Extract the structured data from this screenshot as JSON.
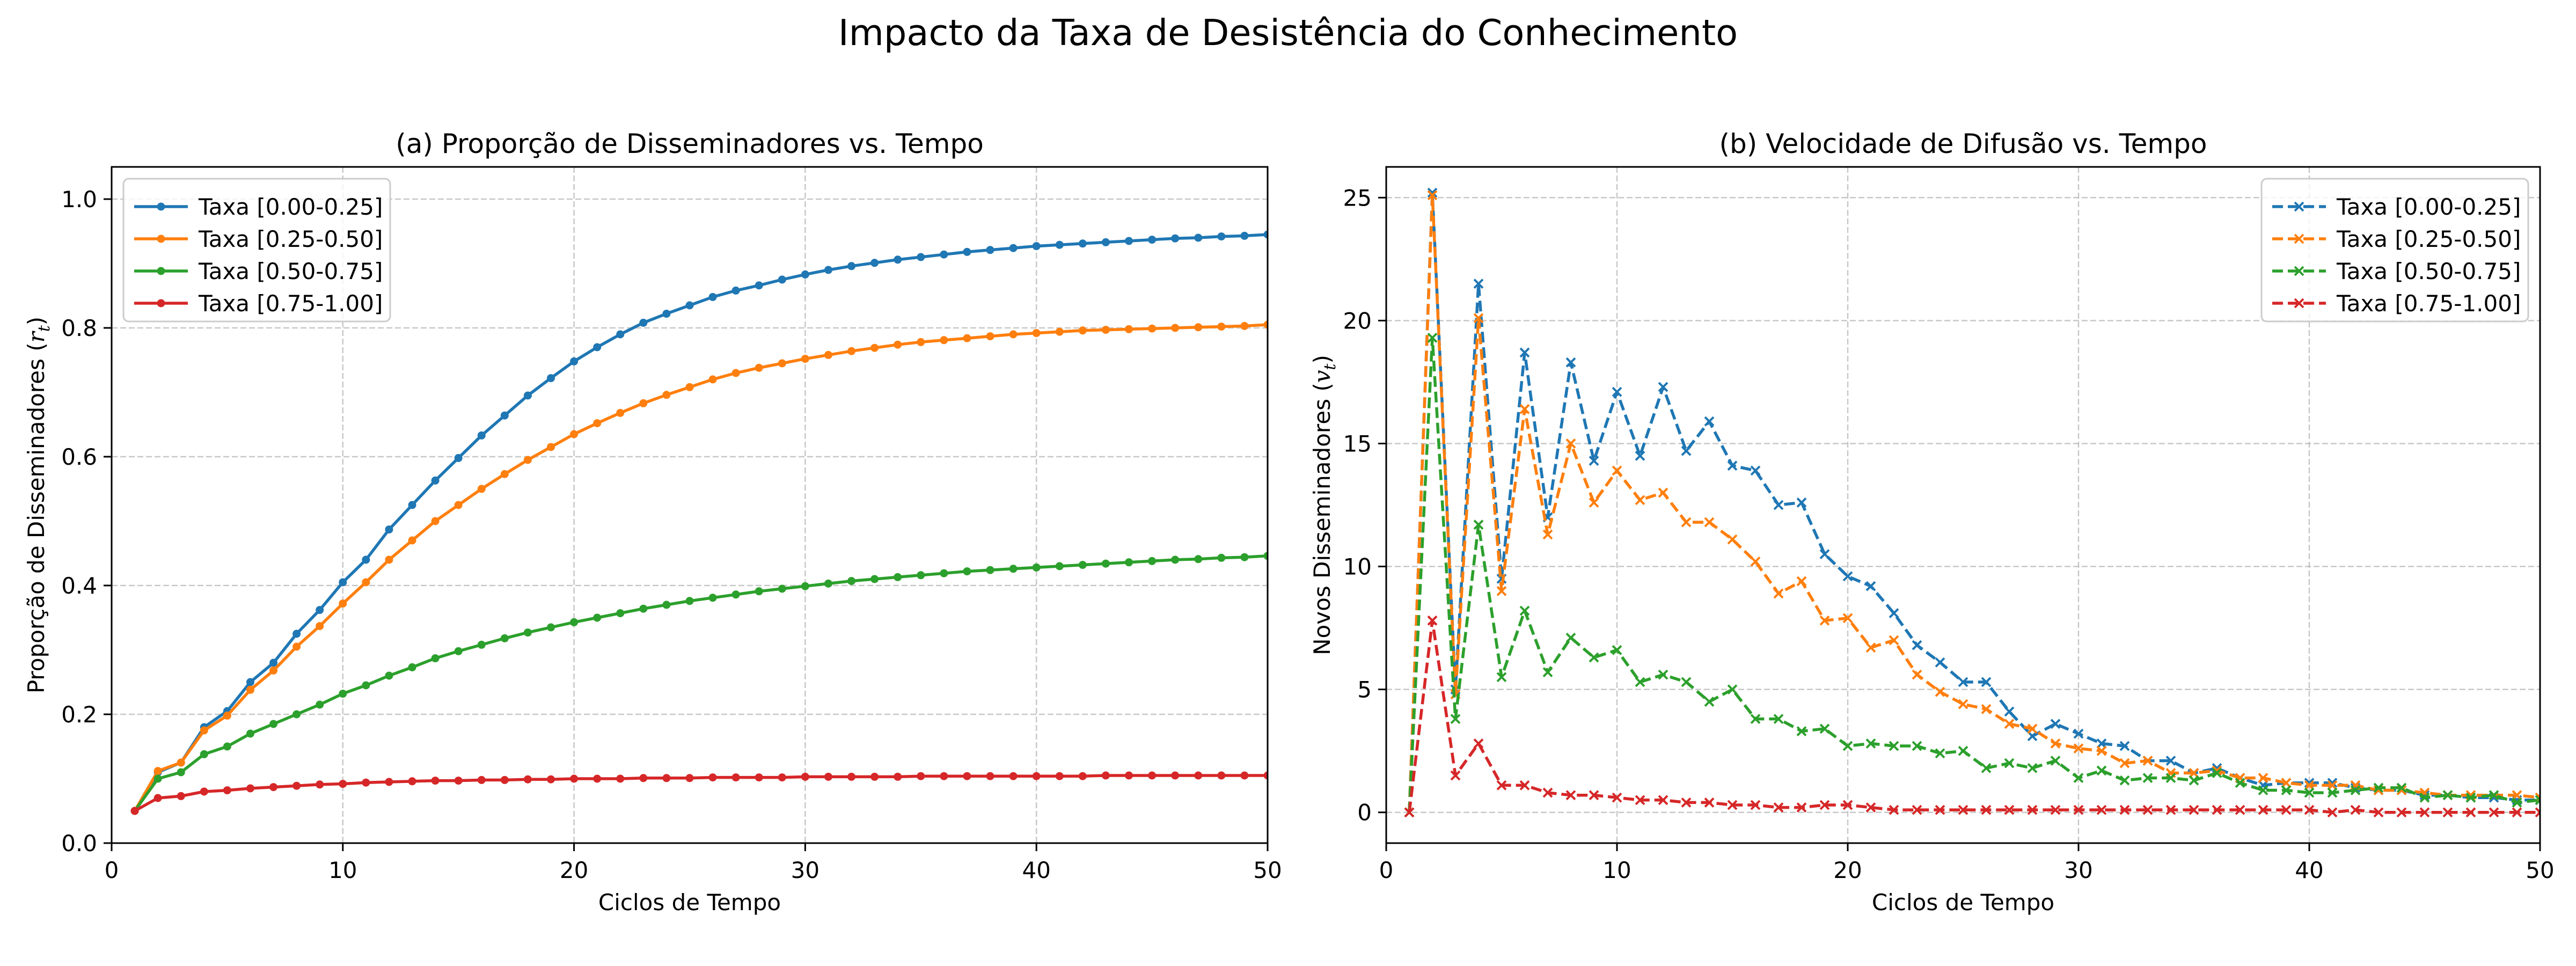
{
  "suptitle": "Impacto da Taxa de Desistência do Conhecimento",
  "colors": {
    "series": [
      "#1f77b4",
      "#ff7f0e",
      "#2ca02c",
      "#d62728"
    ],
    "grid": "#b0b0b0",
    "axes": "#000000"
  },
  "chart_data": [
    {
      "type": "line",
      "title": "(a) Proporção de Disseminadores vs. Tempo",
      "xlabel": "Ciclos de Tempo",
      "ylabel_main": "Proporção de Disseminadores (",
      "ylabel_sym": "r",
      "ylabel_sub": "t",
      "ylabel_end": ")",
      "xlim": [
        0,
        50
      ],
      "ylim": [
        0,
        1.05
      ],
      "xticks": [
        0,
        10,
        20,
        30,
        40,
        50
      ],
      "xtick_labels": [
        "0",
        "10",
        "20",
        "30",
        "40",
        "50"
      ],
      "yticks": [
        0,
        0.2,
        0.4,
        0.6,
        0.8,
        1.0
      ],
      "ytick_labels": [
        "0.0",
        "0.2",
        "0.4",
        "0.6",
        "0.8",
        "1.0"
      ],
      "grid": true,
      "legend": "upper left",
      "marker": "dot",
      "linestyle": "solid",
      "x": [
        1,
        2,
        3,
        4,
        5,
        6,
        7,
        8,
        9,
        10,
        11,
        12,
        13,
        14,
        15,
        16,
        17,
        18,
        19,
        20,
        21,
        22,
        23,
        24,
        25,
        26,
        27,
        28,
        29,
        30,
        31,
        32,
        33,
        34,
        35,
        36,
        37,
        38,
        39,
        40,
        41,
        42,
        43,
        44,
        45,
        46,
        47,
        48,
        49,
        50
      ],
      "series": [
        {
          "name": "Taxa [0.00-0.25]",
          "values": [
            0.05,
            0.11,
            0.125,
            0.18,
            0.205,
            0.25,
            0.28,
            0.325,
            0.362,
            0.405,
            0.44,
            0.487,
            0.525,
            0.563,
            0.598,
            0.633,
            0.664,
            0.695,
            0.722,
            0.748,
            0.77,
            0.79,
            0.808,
            0.822,
            0.835,
            0.848,
            0.858,
            0.866,
            0.875,
            0.883,
            0.89,
            0.896,
            0.901,
            0.906,
            0.91,
            0.914,
            0.918,
            0.921,
            0.924,
            0.927,
            0.929,
            0.931,
            0.933,
            0.935,
            0.937,
            0.939,
            0.94,
            0.942,
            0.943,
            0.945
          ]
        },
        {
          "name": "Taxa [0.25-0.50]",
          "values": [
            0.05,
            0.112,
            0.125,
            0.175,
            0.198,
            0.238,
            0.268,
            0.305,
            0.337,
            0.372,
            0.405,
            0.44,
            0.47,
            0.5,
            0.525,
            0.55,
            0.573,
            0.595,
            0.615,
            0.635,
            0.652,
            0.668,
            0.683,
            0.696,
            0.708,
            0.72,
            0.73,
            0.738,
            0.745,
            0.752,
            0.758,
            0.764,
            0.769,
            0.774,
            0.778,
            0.781,
            0.784,
            0.787,
            0.79,
            0.792,
            0.794,
            0.796,
            0.797,
            0.798,
            0.799,
            0.8,
            0.801,
            0.802,
            0.803,
            0.805
          ]
        },
        {
          "name": "Taxa [0.50-0.75]",
          "values": [
            0.05,
            0.1,
            0.11,
            0.138,
            0.15,
            0.17,
            0.185,
            0.2,
            0.215,
            0.232,
            0.245,
            0.26,
            0.273,
            0.287,
            0.298,
            0.308,
            0.318,
            0.327,
            0.335,
            0.343,
            0.35,
            0.357,
            0.364,
            0.37,
            0.376,
            0.381,
            0.386,
            0.391,
            0.395,
            0.399,
            0.403,
            0.407,
            0.41,
            0.413,
            0.416,
            0.419,
            0.422,
            0.424,
            0.426,
            0.428,
            0.43,
            0.432,
            0.434,
            0.436,
            0.438,
            0.44,
            0.441,
            0.443,
            0.444,
            0.446
          ]
        },
        {
          "name": "Taxa [0.75-1.00]",
          "values": [
            0.05,
            0.07,
            0.073,
            0.08,
            0.082,
            0.085,
            0.087,
            0.089,
            0.091,
            0.092,
            0.094,
            0.095,
            0.096,
            0.097,
            0.097,
            0.098,
            0.098,
            0.099,
            0.099,
            0.1,
            0.1,
            0.1,
            0.101,
            0.101,
            0.101,
            0.102,
            0.102,
            0.102,
            0.102,
            0.103,
            0.103,
            0.103,
            0.103,
            0.103,
            0.104,
            0.104,
            0.104,
            0.104,
            0.104,
            0.104,
            0.104,
            0.104,
            0.105,
            0.105,
            0.105,
            0.105,
            0.105,
            0.105,
            0.105,
            0.105
          ]
        }
      ]
    },
    {
      "type": "line",
      "title": "(b) Velocidade de Difusão vs. Tempo",
      "xlabel": "Ciclos de Tempo",
      "ylabel_main": "Novos Disseminadores (",
      "ylabel_sym": "v",
      "ylabel_sub": "t",
      "ylabel_end": ")",
      "xlim": [
        0,
        50
      ],
      "ylim": [
        -1.25,
        26.25
      ],
      "xticks": [
        0,
        10,
        20,
        30,
        40,
        50
      ],
      "xtick_labels": [
        "0",
        "10",
        "20",
        "30",
        "40",
        "50"
      ],
      "yticks": [
        0,
        5,
        10,
        15,
        20,
        25
      ],
      "ytick_labels": [
        "0",
        "5",
        "10",
        "15",
        "20",
        "25"
      ],
      "grid": true,
      "legend": "upper right",
      "marker": "x",
      "linestyle": "dashed",
      "x": [
        1,
        2,
        3,
        4,
        5,
        6,
        7,
        8,
        9,
        10,
        11,
        12,
        13,
        14,
        15,
        16,
        17,
        18,
        19,
        20,
        21,
        22,
        23,
        24,
        25,
        26,
        27,
        28,
        29,
        30,
        31,
        32,
        33,
        34,
        35,
        36,
        37,
        38,
        39,
        40,
        41,
        42,
        43,
        44,
        45,
        46,
        47,
        48,
        49,
        50
      ],
      "series": [
        {
          "name": "Taxa [0.00-0.25]",
          "values": [
            0,
            25.2,
            5,
            21.5,
            9.5,
            18.7,
            12,
            18.3,
            14.3,
            17.1,
            14.5,
            17.3,
            14.7,
            15.9,
            14.1,
            13.9,
            12.5,
            12.6,
            10.5,
            9.6,
            9.2,
            8.1,
            6.8,
            6.1,
            5.3,
            5.3,
            4.1,
            3.1,
            3.6,
            3.2,
            2.8,
            2.7,
            2.1,
            2.1,
            1.6,
            1.8,
            1.4,
            1.1,
            1.2,
            1.2,
            1.2,
            1.0,
            0.9,
            0.9,
            0.7,
            0.7,
            0.6,
            0.6,
            0.5,
            0.5
          ]
        },
        {
          "name": "Taxa [0.25-0.50]",
          "values": [
            0,
            25.1,
            4.8,
            20.1,
            9,
            16.4,
            11.3,
            15,
            12.6,
            13.9,
            12.7,
            13,
            11.8,
            11.8,
            11.1,
            10.2,
            8.9,
            9.4,
            7.8,
            7.9,
            6.7,
            7,
            5.6,
            4.9,
            4.4,
            4.2,
            3.6,
            3.4,
            2.8,
            2.6,
            2.5,
            2,
            2.1,
            1.6,
            1.6,
            1.7,
            1.4,
            1.4,
            1.2,
            1.1,
            1.1,
            1.1,
            0.9,
            0.9,
            0.8,
            0.7,
            0.7,
            0.7,
            0.7,
            0.6
          ]
        },
        {
          "name": "Taxa [0.50-0.75]",
          "values": [
            0,
            19.3,
            3.8,
            11.7,
            5.5,
            8.2,
            5.7,
            7.1,
            6.3,
            6.6,
            5.3,
            5.6,
            5.3,
            4.5,
            5,
            3.8,
            3.8,
            3.3,
            3.4,
            2.7,
            2.8,
            2.7,
            2.7,
            2.4,
            2.5,
            1.8,
            2,
            1.8,
            2.1,
            1.4,
            1.7,
            1.3,
            1.4,
            1.4,
            1.3,
            1.6,
            1.2,
            0.9,
            0.9,
            0.8,
            0.8,
            0.9,
            1.0,
            1.0,
            0.6,
            0.7,
            0.6,
            0.7,
            0.4,
            0.5
          ]
        },
        {
          "name": "Taxa [0.75-1.00]",
          "values": [
            0,
            7.8,
            1.5,
            2.8,
            1.1,
            1.1,
            0.8,
            0.7,
            0.7,
            0.6,
            0.5,
            0.5,
            0.4,
            0.4,
            0.3,
            0.3,
            0.2,
            0.2,
            0.3,
            0.3,
            0.2,
            0.1,
            0.1,
            0.1,
            0.1,
            0.1,
            0.1,
            0.1,
            0.1,
            0.1,
            0.1,
            0.1,
            0.1,
            0.1,
            0.1,
            0.1,
            0.1,
            0.1,
            0.1,
            0.1,
            0,
            0.1,
            0,
            0,
            0,
            0,
            0,
            0,
            0,
            0
          ]
        }
      ]
    }
  ]
}
